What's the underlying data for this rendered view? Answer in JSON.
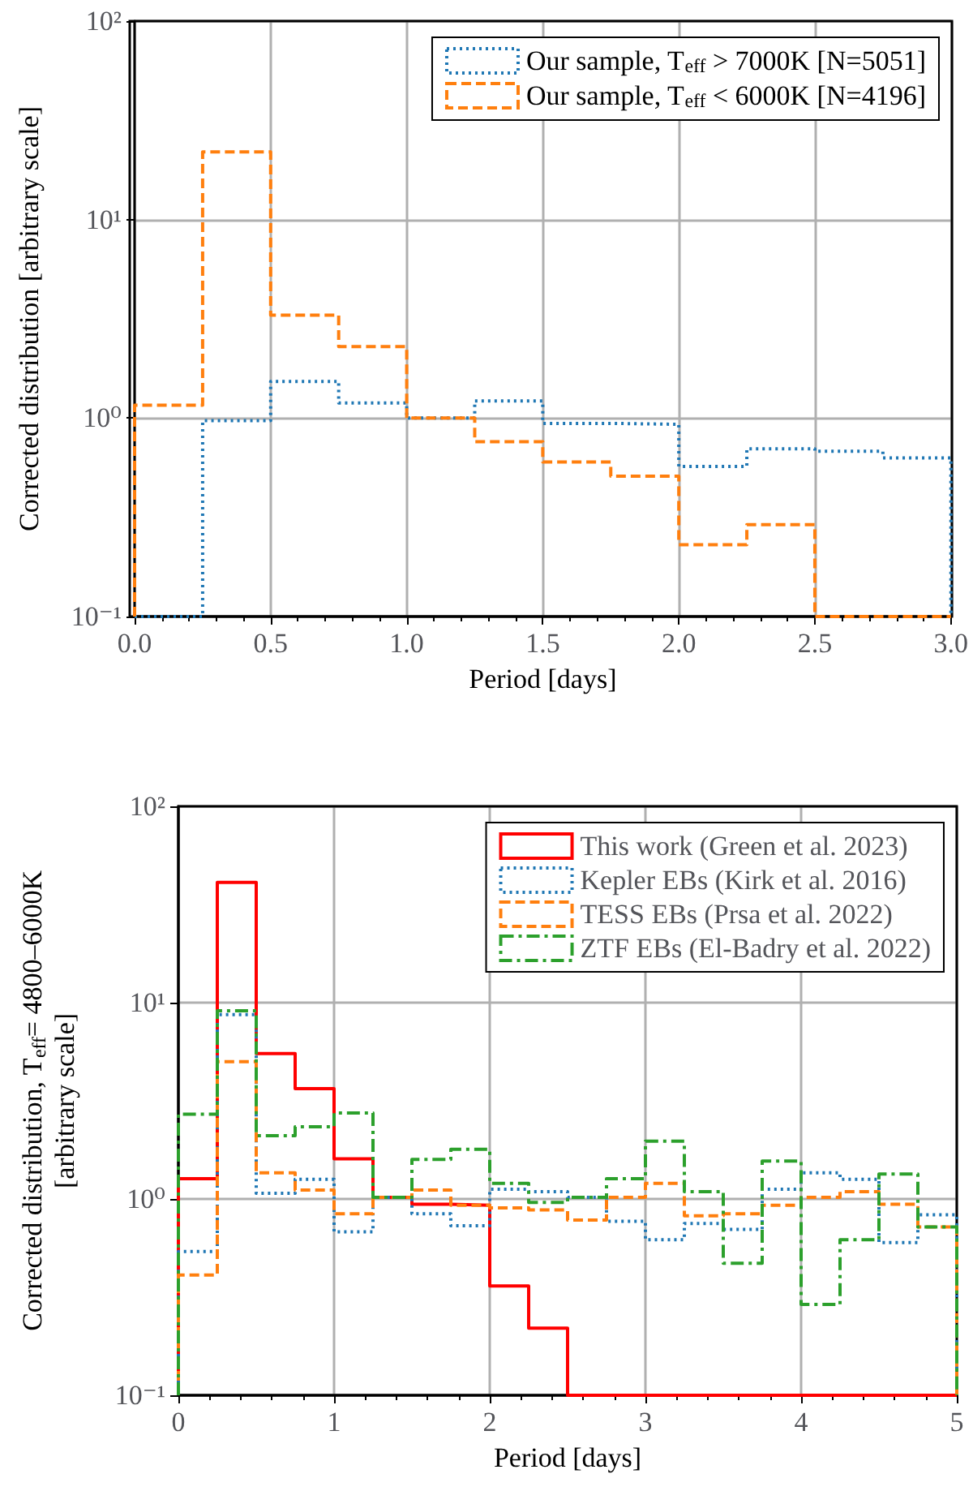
{
  "chart_data": [
    {
      "type": "histogram",
      "xlabel": "Period [days]",
      "ylabel": "Corrected distribution [arbitrary scale]",
      "log": "y",
      "grid": true,
      "legend": "top right",
      "xlim": [
        0,
        3
      ],
      "xticks": [
        {
          "value": 0,
          "label": "0.0"
        },
        {
          "value": 0.5,
          "label": "0.5"
        },
        {
          "value": 1,
          "label": "1.0"
        },
        {
          "value": 1.5,
          "label": "1.5"
        },
        {
          "value": 2,
          "label": "2.0"
        },
        {
          "value": 2.5,
          "label": "2.5"
        },
        {
          "value": 3,
          "label": "3.0"
        }
      ],
      "ylim": [
        0.1,
        100
      ],
      "yticks": [
        {
          "value": 0.1,
          "label": "10⁻¹"
        },
        {
          "value": 1,
          "label": "10⁰"
        },
        {
          "value": 10,
          "label": "10¹"
        },
        {
          "value": 100,
          "label": "10²"
        }
      ],
      "bins": [
        0,
        0.25,
        0.5,
        0.75,
        1,
        1.25,
        1.5,
        1.75,
        2,
        2.25,
        2.5,
        2.75,
        3
      ],
      "series": [
        {
          "name": "Our sample, T$_{eff}$ > 7000K [N=5051]",
          "color": "#1f77b4",
          "line_style": "dotted",
          "values": [
            null,
            0.97,
            1.53,
            1.19,
            1.0,
            1.22,
            0.94,
            0.93,
            0.57,
            0.7,
            0.68,
            0.63
          ]
        },
        {
          "name": "Our sample, T$_{eff}$ < 6000K [N=4196]",
          "color": "#ff7f0e",
          "line_style": "dashed",
          "values": [
            1.16,
            21.9,
            3.3,
            2.29,
            1.0,
            0.76,
            0.6,
            0.51,
            0.23,
            0.29,
            null,
            null
          ]
        }
      ]
    },
    {
      "type": "histogram",
      "xlabel": "Period [days]",
      "ylabel": "Corrected distribution, T$_{eff}$= 4800–6000K\n[arbitrary scale]",
      "log": "y",
      "grid": true,
      "legend": "top right",
      "xlim": [
        0,
        5
      ],
      "xticks": [
        0,
        1,
        2,
        3,
        4,
        5
      ],
      "ylim": [
        0.1,
        100
      ],
      "yticks": [
        {
          "value": 0.1,
          "label": "10⁻¹"
        },
        {
          "value": 1,
          "label": "10⁰"
        },
        {
          "value": 10,
          "label": "10¹"
        },
        {
          "value": 100,
          "label": "10²"
        }
      ],
      "bins": [
        0,
        0.25,
        0.5,
        0.75,
        1,
        1.25,
        1.5,
        1.75,
        2,
        2.25,
        2.5,
        2.75,
        3,
        3.25,
        3.5,
        3.75,
        4,
        4.25,
        4.5,
        4.75,
        5
      ],
      "series": [
        {
          "name": "This work (Green et al. 2023)",
          "color": "#ff0000",
          "line_style": "solid",
          "values": [
            1.27,
            41,
            5.5,
            3.65,
            1.6,
            1.02,
            0.94,
            0.93,
            0.36,
            0.22,
            null,
            null,
            null,
            null,
            null,
            null,
            null,
            null,
            null,
            null
          ]
        },
        {
          "name": "Kepler EBs (Kirk et al. 2016)",
          "color": "#1f77b4",
          "line_style": "dotted",
          "values": [
            0.54,
            8.7,
            1.07,
            1.26,
            0.68,
            1.02,
            0.84,
            0.73,
            1.12,
            1.09,
            1.02,
            0.77,
            0.62,
            0.75,
            0.7,
            1.12,
            1.36,
            1.26,
            0.6,
            0.83
          ]
        },
        {
          "name": "TESS EBs (Prsa et al. 2022)",
          "color": "#ff7f0e",
          "line_style": "dashed",
          "values": [
            0.41,
            5.0,
            1.36,
            1.11,
            0.84,
            1.02,
            1.11,
            0.93,
            0.9,
            0.88,
            0.78,
            1.02,
            1.2,
            0.82,
            0.84,
            0.93,
            1.02,
            1.09,
            0.94,
            0.72
          ]
        },
        {
          "name": "ZTF EBs (El-Badry et al. 2022)",
          "color": "#2ca02c",
          "line_style": "dashdot",
          "values": [
            2.7,
            9.1,
            2.1,
            2.33,
            2.74,
            1.02,
            1.59,
            1.79,
            1.2,
            0.96,
            1.02,
            1.27,
            1.97,
            1.09,
            0.47,
            1.56,
            0.29,
            0.62,
            1.34,
            0.72
          ]
        }
      ]
    }
  ]
}
